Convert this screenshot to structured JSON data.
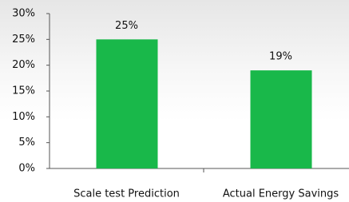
{
  "chart_data": {
    "type": "bar",
    "categories": [
      "Scale test Prediction",
      "Actual Energy Savings"
    ],
    "values": [
      25,
      19
    ],
    "value_labels": [
      "25%",
      "19%"
    ],
    "color": "#19b84a",
    "ylim": [
      0,
      30
    ],
    "yticks": [
      {
        "value": 0,
        "label": "0%"
      },
      {
        "value": 5,
        "label": "5%"
      },
      {
        "value": 10,
        "label": "10%"
      },
      {
        "value": 15,
        "label": "15%"
      },
      {
        "value": 20,
        "label": "20%"
      },
      {
        "value": 25,
        "label": "25%"
      },
      {
        "value": 30,
        "label": "30%"
      }
    ],
    "grid": false
  }
}
